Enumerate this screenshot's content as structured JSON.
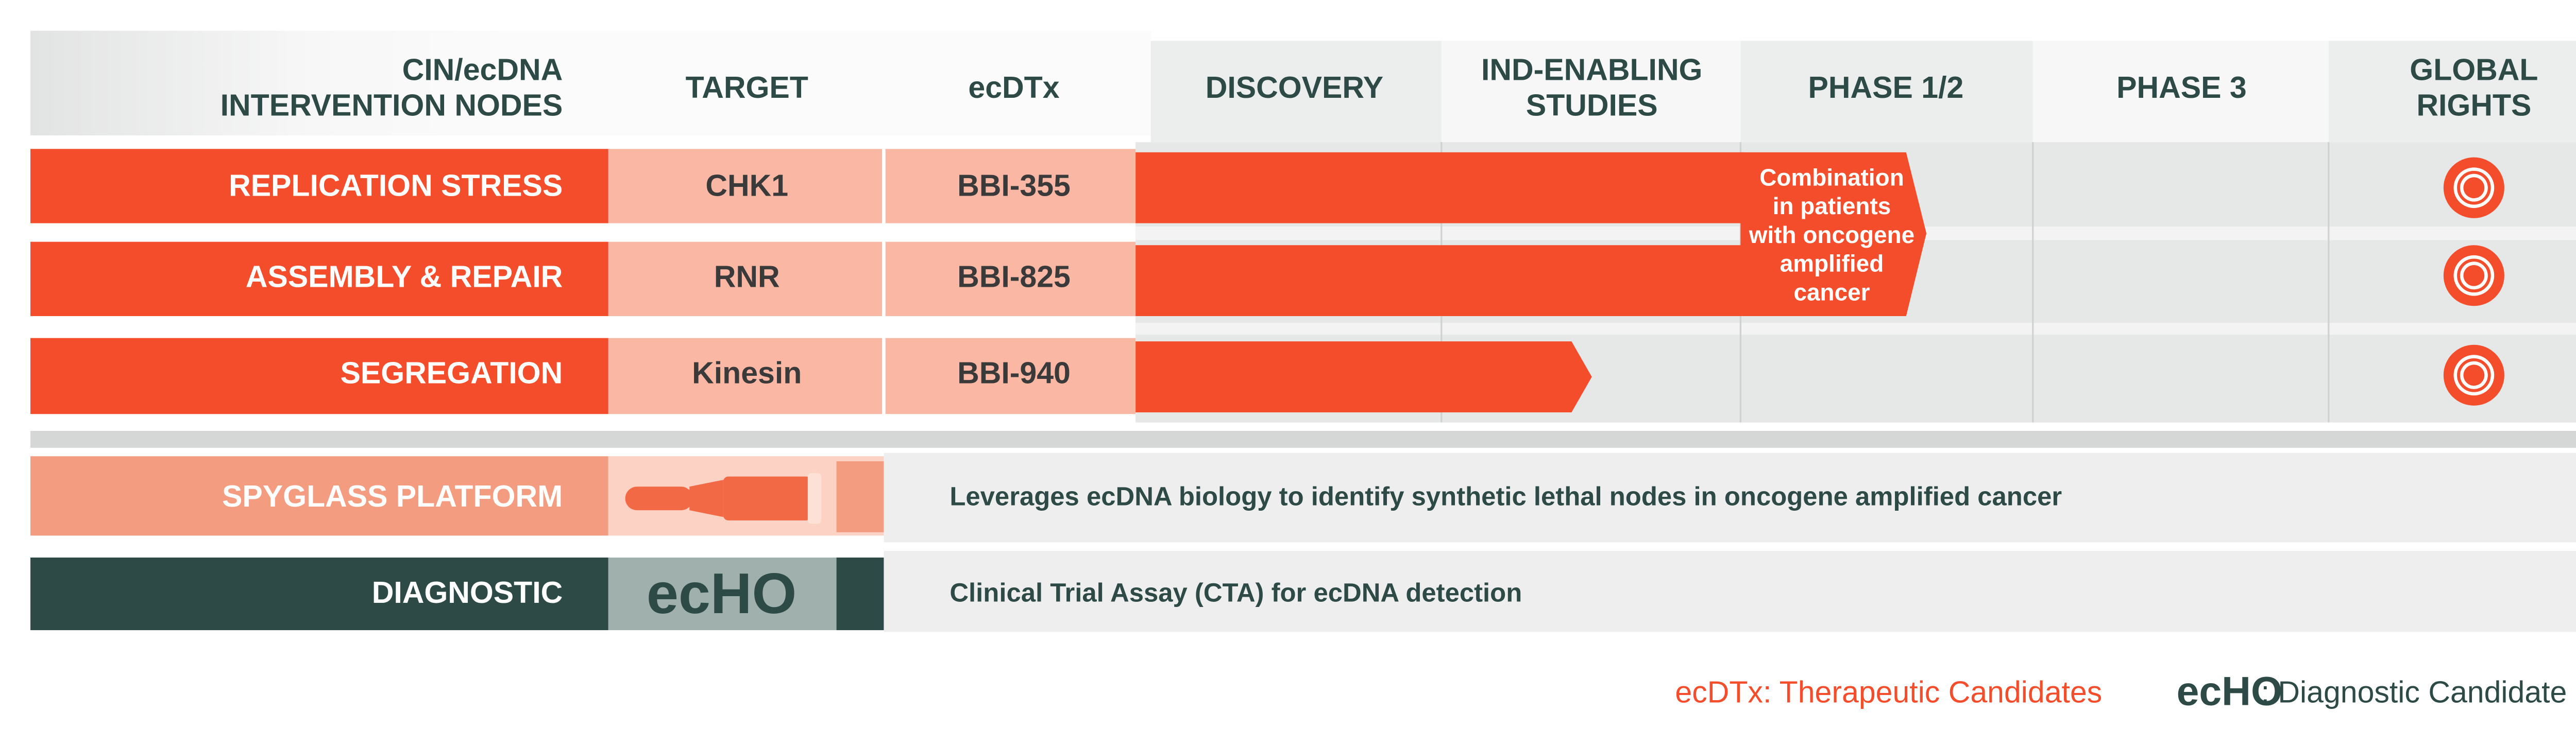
{
  "header": {
    "columns": [
      [
        "CIN/ecDNA",
        "INTERVENTION NODES"
      ],
      [
        "TARGET"
      ],
      [
        "ecDTx"
      ],
      [
        "DISCOVERY"
      ],
      [
        "IND-ENABLING",
        "STUDIES"
      ],
      [
        "PHASE 1/2"
      ],
      [
        "PHASE 3"
      ],
      [
        "GLOBAL",
        "RIGHTS"
      ]
    ]
  },
  "rows": [
    {
      "node": "REPLICATION STRESS",
      "target": "CHK1",
      "drug": "BBI-355"
    },
    {
      "node": "ASSEMBLY & REPAIR",
      "target": "RNR",
      "drug": "BBI-825"
    },
    {
      "node": "SEGREGATION",
      "target": "Kinesin",
      "drug": "BBI-940"
    }
  ],
  "annotation": [
    "Combination",
    "in patients",
    "with oncogene",
    "amplified",
    "cancer"
  ],
  "platforms": [
    {
      "label": "SPYGLASS PLATFORM",
      "description": "Leverages ecDNA biology to identify synthetic lethal nodes in oncogene amplified cancer"
    },
    {
      "label": "DIAGNOSTIC",
      "logo": "ecHO",
      "description": "Clinical Trial Assay (CTA) for ecDNA detection"
    }
  ],
  "legend": {
    "therapeutic": "ecDTx: Therapeutic Candidates",
    "logo": "ecHO",
    "diagnostic": ": Diagnostic Candidate"
  }
}
